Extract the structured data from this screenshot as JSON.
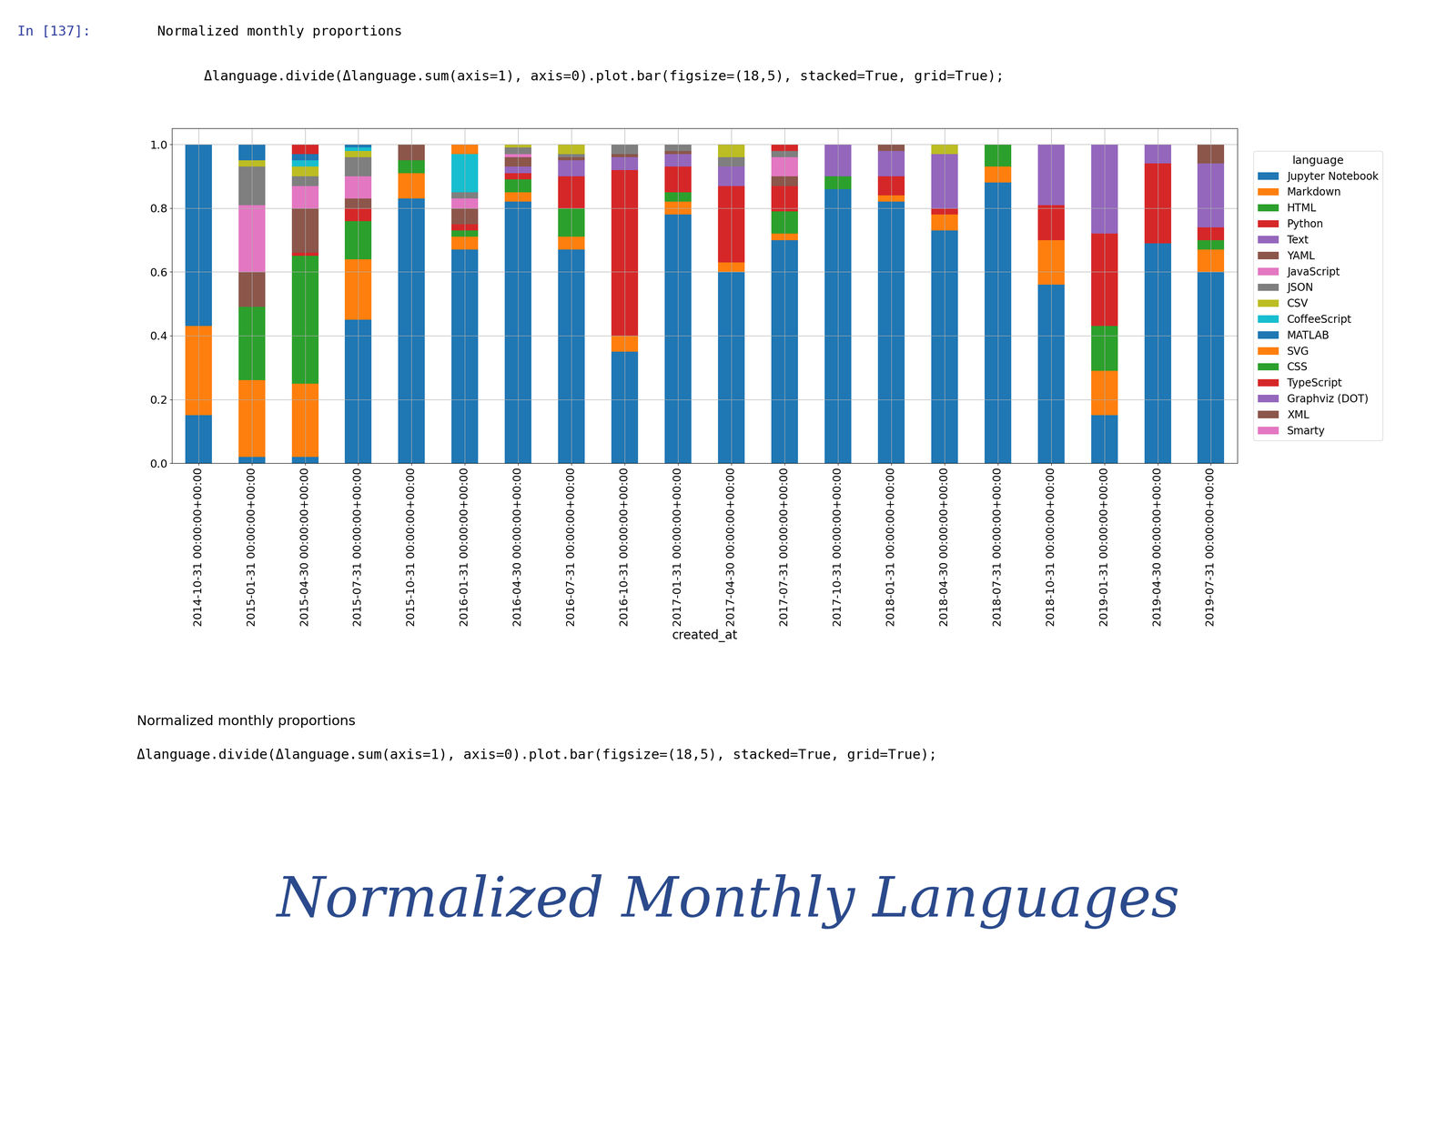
{
  "cell": {
    "prompt": "In [137]:",
    "heading": "Normalized monthly proportions",
    "code": "Δlanguage.divide(Δlanguage.sum(axis=1), axis=0).plot.bar(figsize=(18,5), stacked=True, grid=True);"
  },
  "chart_data": {
    "type": "bar",
    "stacked": true,
    "grid": true,
    "legend": "right",
    "legend_title": "language",
    "x_label": "created_at",
    "categories": [
      "2014-10-31 00:00:00+00:00",
      "2015-01-31 00:00:00+00:00",
      "2015-04-30 00:00:00+00:00",
      "2015-07-31 00:00:00+00:00",
      "2015-10-31 00:00:00+00:00",
      "2016-01-31 00:00:00+00:00",
      "2016-04-30 00:00:00+00:00",
      "2016-07-31 00:00:00+00:00",
      "2016-10-31 00:00:00+00:00",
      "2017-01-31 00:00:00+00:00",
      "2017-04-30 00:00:00+00:00",
      "2017-07-31 00:00:00+00:00",
      "2017-10-31 00:00:00+00:00",
      "2018-01-31 00:00:00+00:00",
      "2018-04-30 00:00:00+00:00",
      "2018-07-31 00:00:00+00:00",
      "2018-10-31 00:00:00+00:00",
      "2019-01-31 00:00:00+00:00",
      "2019-04-30 00:00:00+00:00",
      "2019-07-31 00:00:00+00:00"
    ],
    "ylim": [
      0,
      1.05
    ],
    "yticks": [
      {
        "value": 0,
        "label": "0.0"
      },
      {
        "value": 0.2,
        "label": "0.2"
      },
      {
        "value": 0.4,
        "label": "0.4"
      },
      {
        "value": 0.6,
        "label": "0.6"
      },
      {
        "value": 0.8,
        "label": "0.8"
      },
      {
        "value": 1,
        "label": "1.0"
      }
    ],
    "series": [
      {
        "name": "Jupyter Notebook",
        "color": "#1f77b4",
        "values": [
          0.15,
          0.02,
          0.02,
          0.45,
          0.83,
          0.67,
          0.82,
          0.67,
          0.35,
          0.78,
          0.6,
          0.7,
          0.86,
          0.82,
          0.73,
          0.88,
          0.56,
          0.15,
          0.69,
          0.6
        ]
      },
      {
        "name": "Markdown",
        "color": "#ff7f0e",
        "values": [
          0.28,
          0.24,
          0.23,
          0.19,
          0.08,
          0.04,
          0.03,
          0.04,
          0.05,
          0.04,
          0.03,
          0.02,
          0,
          0.02,
          0.05,
          0.05,
          0.14,
          0.14,
          0,
          0.07
        ]
      },
      {
        "name": "HTML",
        "color": "#2ca02c",
        "values": [
          0,
          0.23,
          0.4,
          0.12,
          0.04,
          0.02,
          0.04,
          0.09,
          0,
          0.03,
          0,
          0.07,
          0.04,
          0,
          0,
          0.07,
          0,
          0.14,
          0,
          0.03
        ]
      },
      {
        "name": "Python",
        "color": "#d62728",
        "values": [
          0,
          0,
          0.01,
          0.04,
          0,
          0.02,
          0.02,
          0.1,
          0.52,
          0.08,
          0.24,
          0.08,
          0,
          0.06,
          0.02,
          0,
          0.11,
          0.29,
          0.25,
          0.04
        ]
      },
      {
        "name": "Text",
        "color": "#9467bd",
        "values": [
          0,
          0,
          0,
          0,
          0,
          0,
          0.02,
          0.05,
          0.04,
          0.04,
          0.06,
          0,
          0.1,
          0.08,
          0.17,
          0,
          0.19,
          0.28,
          0.06,
          0.2
        ]
      },
      {
        "name": "YAML",
        "color": "#8c564b",
        "values": [
          0,
          0.11,
          0.14,
          0.03,
          0.05,
          0.05,
          0.03,
          0.01,
          0.01,
          0.01,
          0,
          0.03,
          0,
          0.02,
          0,
          0,
          0,
          0,
          0,
          0.06
        ]
      },
      {
        "name": "JavaScript",
        "color": "#e377c2",
        "values": [
          0,
          0.21,
          0.07,
          0.07,
          0,
          0.03,
          0.01,
          0,
          0,
          0,
          0,
          0.06,
          0,
          0,
          0,
          0,
          0,
          0,
          0,
          0
        ]
      },
      {
        "name": "JSON",
        "color": "#7f7f7f",
        "values": [
          0,
          0.12,
          0.03,
          0.06,
          0,
          0.02,
          0.02,
          0.01,
          0.03,
          0.02,
          0.03,
          0.02,
          0,
          0,
          0,
          0,
          0,
          0,
          0,
          0
        ]
      },
      {
        "name": "CSV",
        "color": "#bcbd22",
        "values": [
          0,
          0.02,
          0.03,
          0.02,
          0,
          0,
          0.01,
          0.03,
          0,
          0,
          0.04,
          0,
          0,
          0,
          0.03,
          0,
          0,
          0,
          0,
          0
        ]
      },
      {
        "name": "CoffeeScript",
        "color": "#17becf",
        "values": [
          0,
          0,
          0.02,
          0.01,
          0,
          0.12,
          0,
          0,
          0,
          0,
          0,
          0,
          0,
          0,
          0,
          0,
          0,
          0,
          0,
          0
        ]
      },
      {
        "name": "MATLAB",
        "color": "#1f77b4",
        "values": [
          0.57,
          0.05,
          0.02,
          0.01,
          0,
          0,
          0,
          0,
          0,
          0,
          0,
          0,
          0,
          0,
          0,
          0,
          0,
          0,
          0,
          0
        ]
      },
      {
        "name": "SVG",
        "color": "#ff7f0e",
        "values": [
          0,
          0,
          0,
          0,
          0,
          0.03,
          0,
          0,
          0,
          0,
          0,
          0,
          0,
          0,
          0,
          0,
          0,
          0,
          0,
          0
        ]
      },
      {
        "name": "CSS",
        "color": "#2ca02c",
        "values": [
          0,
          0,
          0,
          0,
          0,
          0,
          0,
          0,
          0,
          0,
          0,
          0,
          0,
          0,
          0,
          0,
          0,
          0,
          0,
          0
        ]
      },
      {
        "name": "TypeScript",
        "color": "#d62728",
        "values": [
          0,
          0,
          0.03,
          0,
          0,
          0,
          0,
          0,
          0,
          0,
          0,
          0.02,
          0,
          0,
          0,
          0,
          0,
          0,
          0,
          0
        ]
      },
      {
        "name": "Graphviz (DOT)",
        "color": "#9467bd",
        "values": [
          0,
          0,
          0,
          0,
          0,
          0,
          0,
          0,
          0,
          0,
          0,
          0,
          0,
          0,
          0,
          0,
          0,
          0,
          0,
          0
        ]
      },
      {
        "name": "XML",
        "color": "#8c564b",
        "values": [
          0,
          0,
          0,
          0,
          0,
          0,
          0,
          0,
          0,
          0,
          0,
          0,
          0,
          0,
          0,
          0,
          0,
          0,
          0,
          0
        ]
      },
      {
        "name": "Smarty",
        "color": "#e377c2",
        "values": [
          0,
          0,
          0,
          0,
          0,
          0,
          0,
          0,
          0,
          0,
          0,
          0,
          0,
          0,
          0,
          0,
          0,
          0,
          0,
          0
        ]
      }
    ]
  },
  "output_caption": {
    "heading": "Normalized monthly proportions",
    "code": "Δlanguage.divide(Δlanguage.sum(axis=1), axis=0).plot.bar(figsize=(18,5), stacked=True, grid=True);"
  },
  "handwriting": "Normalized Monthly Languages"
}
